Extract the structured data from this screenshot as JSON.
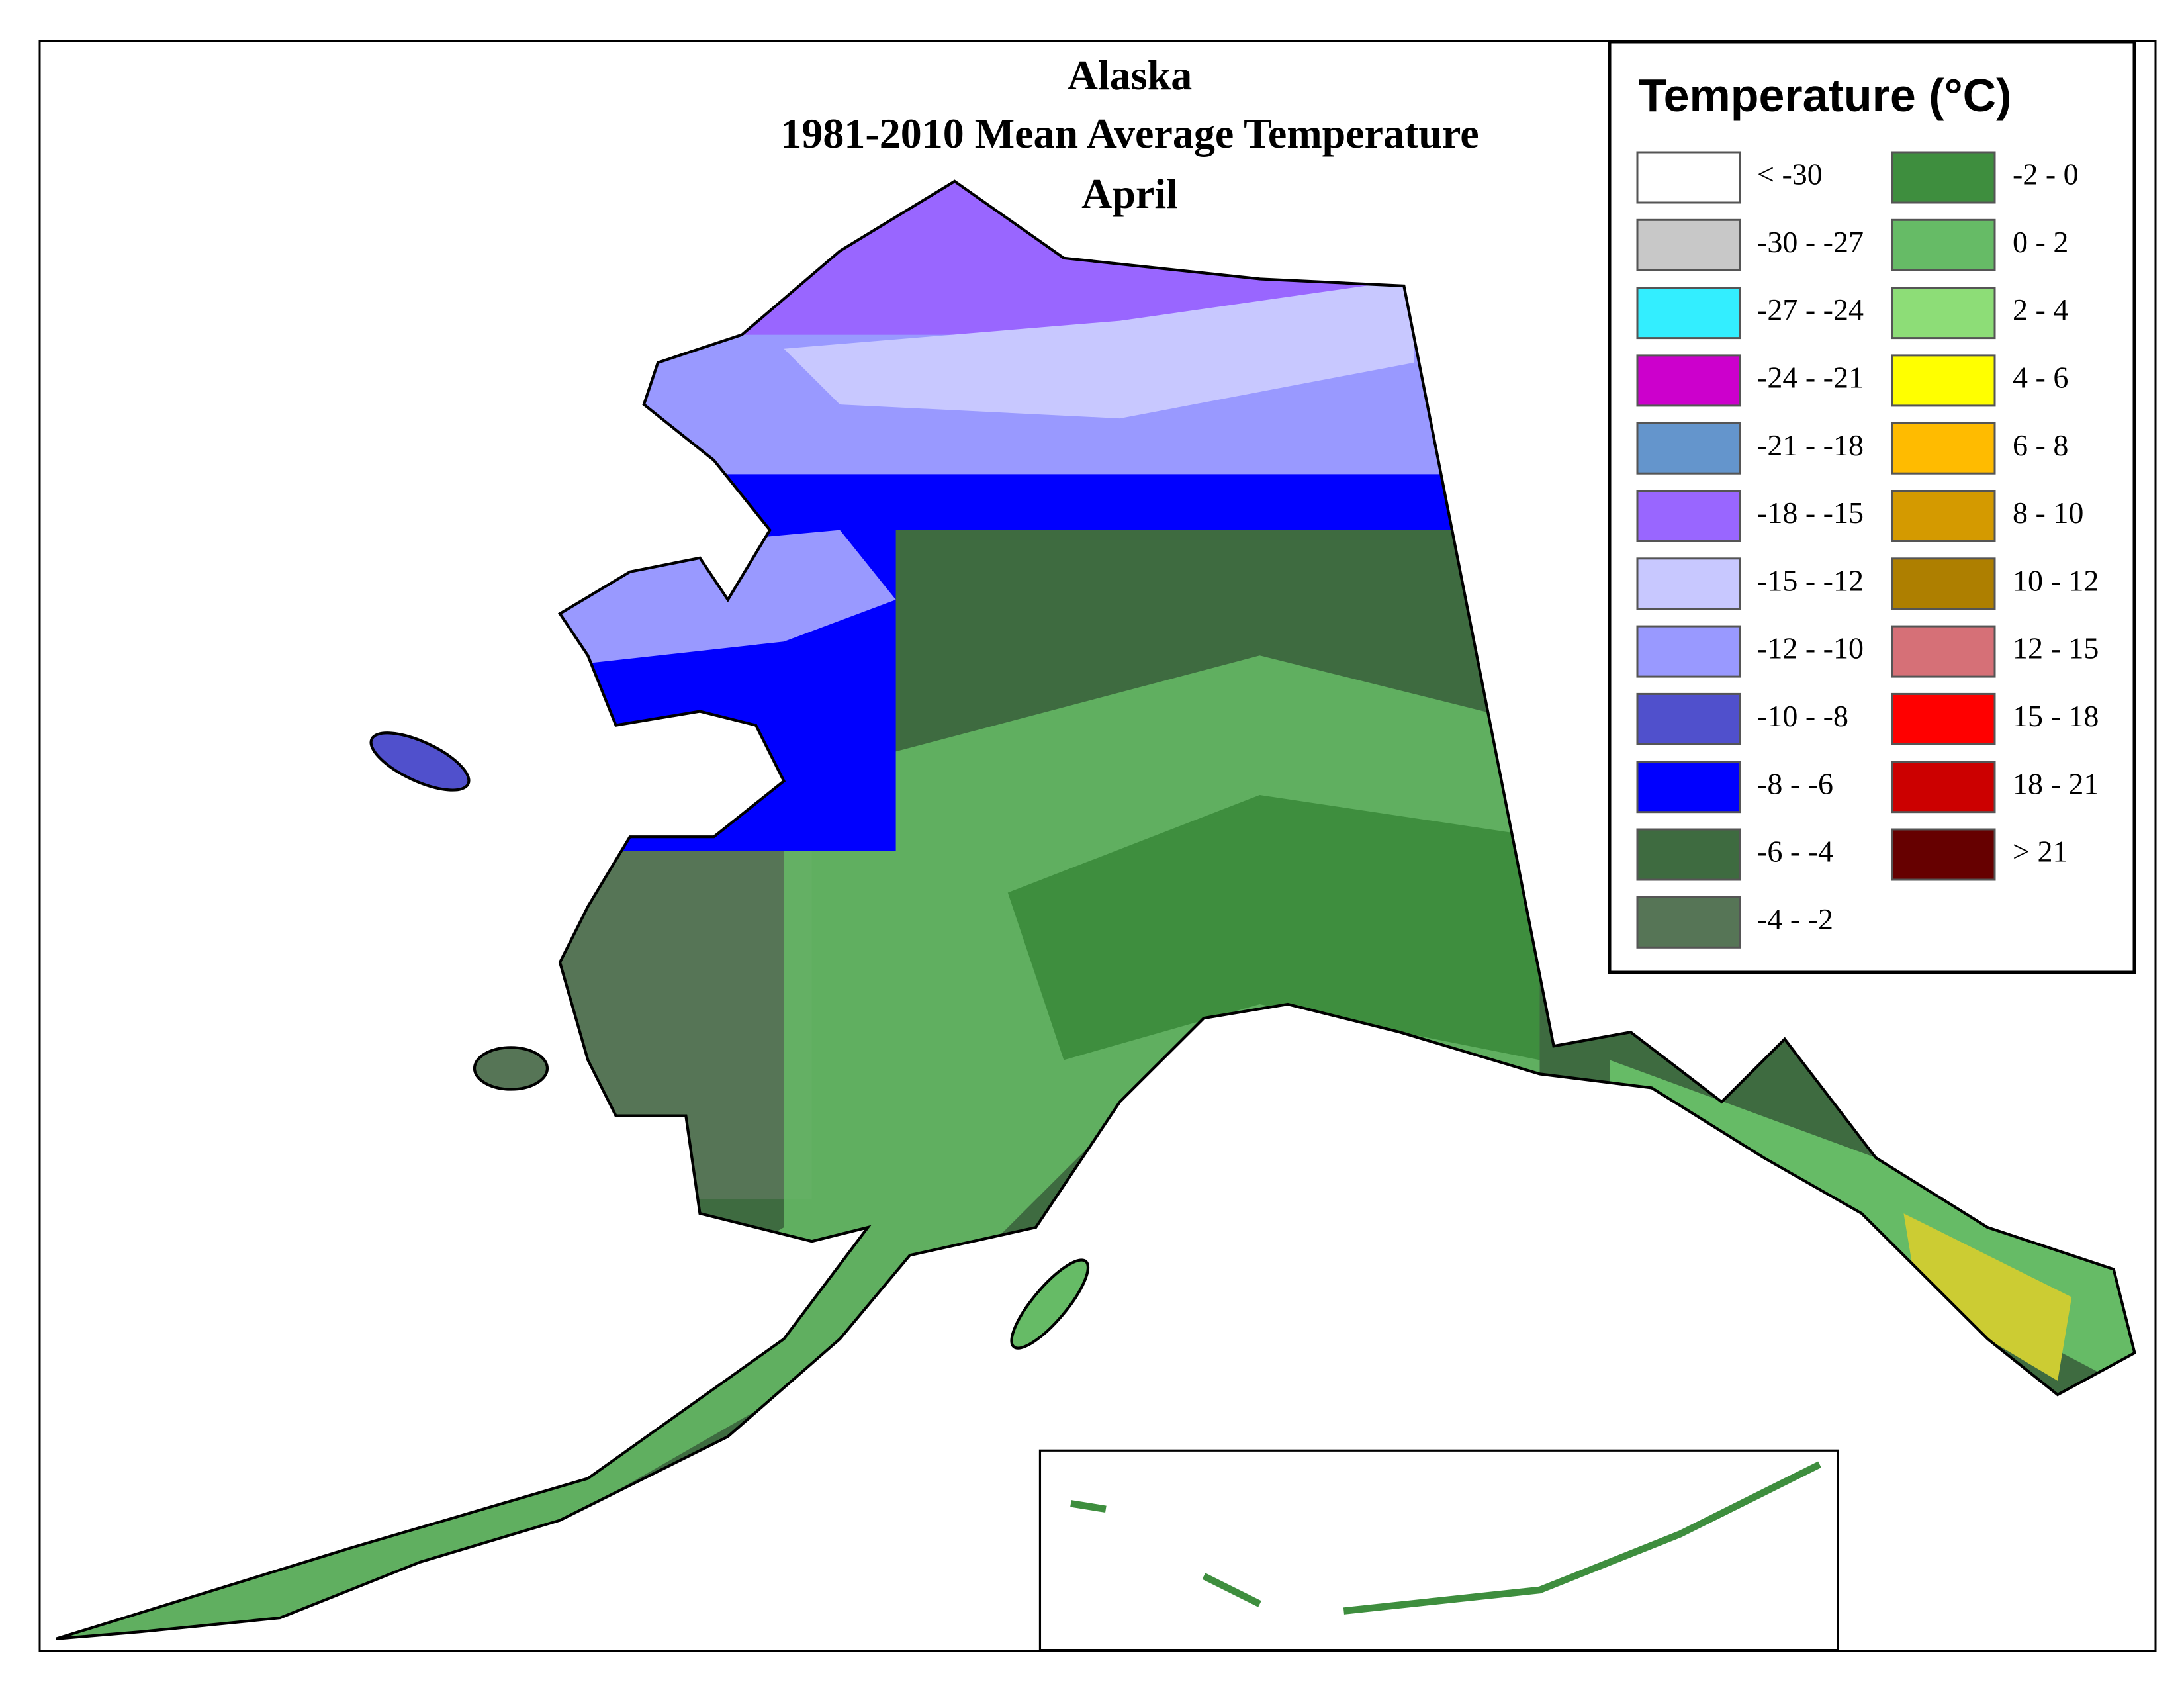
{
  "map": {
    "title": [
      "Alaska",
      "1981-2010 Mean Average Temperature",
      "April"
    ],
    "legend": {
      "title": "Temperature (°C)",
      "items": [
        {
          "label": "< -30",
          "color": "#ffffff"
        },
        {
          "label": "-30 - -27",
          "color": "#c8c8c8"
        },
        {
          "label": "-27 - -24",
          "color": "#33eeff"
        },
        {
          "label": "-24 - -21",
          "color": "#cc00cc"
        },
        {
          "label": "-21 - -18",
          "color": "#6495cc"
        },
        {
          "label": "-18 - -15",
          "color": "#9966ff"
        },
        {
          "label": "-15 - -12",
          "color": "#c8c8ff"
        },
        {
          "label": "-12 - -10",
          "color": "#9999ff"
        },
        {
          "label": "-10 - -8",
          "color": "#5050cc"
        },
        {
          "label": "-8 - -6",
          "color": "#0000ff"
        },
        {
          "label": "-6 - -4",
          "color": "#3e6b40"
        },
        {
          "label": "-4 - -2",
          "color": "#567556"
        },
        {
          "label": "-2 - 0",
          "color": "#3e8e3e"
        },
        {
          "label": "0 - 2",
          "color": "#66bb66"
        },
        {
          "label": "2 - 4",
          "color": "#8ddd77"
        },
        {
          "label": "4 - 6",
          "color": "#ffff00"
        },
        {
          "label": "6 - 8",
          "color": "#ffbb00"
        },
        {
          "label": "8 - 10",
          "color": "#d49a00"
        },
        {
          "label": "10 - 12",
          "color": "#ae7f00"
        },
        {
          "label": "12 - 15",
          "color": "#d67077"
        },
        {
          "label": "15 - 18",
          "color": "#ff0000"
        },
        {
          "label": "18 - 21",
          "color": "#cc0000"
        },
        {
          "label": "> 21",
          "color": "#660000"
        }
      ]
    }
  }
}
